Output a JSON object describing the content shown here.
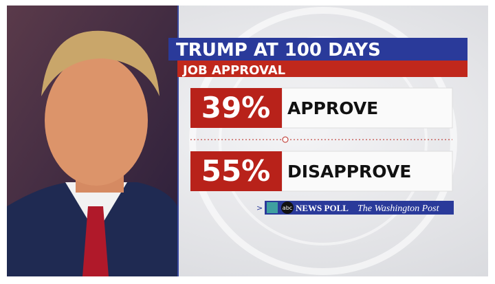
{
  "header": {
    "title": "TRUMP AT 100 DAYS",
    "subtitle": "JOB APPROVAL"
  },
  "results": [
    {
      "value": "39%",
      "label": "APPROVE"
    },
    {
      "value": "55%",
      "label": "DISAPPROVE"
    }
  ],
  "source": {
    "network": "abc",
    "poll": "NEWS POLL",
    "partner": "The Washington Post"
  }
}
